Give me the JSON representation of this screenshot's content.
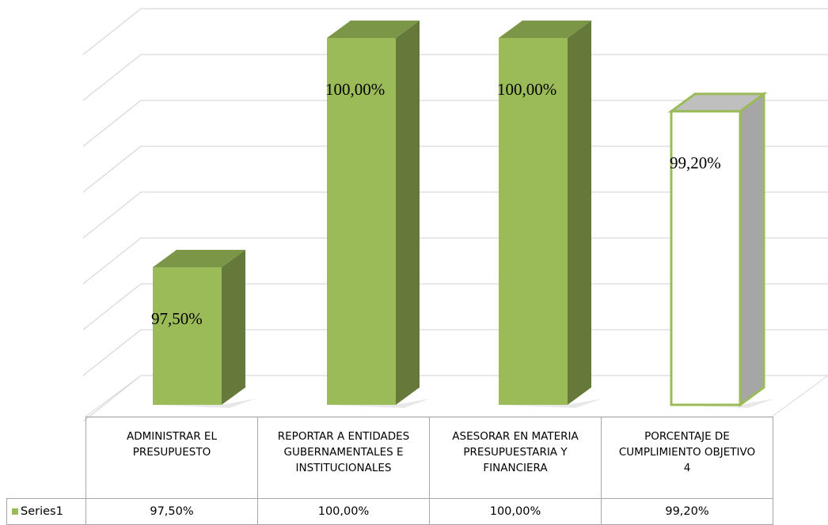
{
  "chart_data": {
    "type": "bar3d",
    "categories": [
      "ADMINISTRAR EL PRESUPUESTO",
      "REPORTAR A ENTIDADES GUBERNAMENTALES E INSTITUCIONALES",
      "ASESORAR EN MATERIA PRESUPUESTARIA Y FINANCIERA",
      "PORCENTAJE DE CUMPLIMIENTO OBJETIVO 4"
    ],
    "series": [
      {
        "name": "Series1",
        "color": "#9bbb59",
        "bar_colors": [
          "#9bbb59",
          "#9bbb59",
          "#9bbb59",
          "#ffffff"
        ],
        "values": [
          97.5,
          100,
          100,
          99.2
        ],
        "value_labels": [
          "97,50%",
          "100,00%",
          "100,00%",
          "99,20%"
        ]
      }
    ],
    "ylim": [
      96,
      100
    ],
    "yticks": [
      96,
      96.5,
      97,
      97.5,
      98,
      98.5,
      99,
      99.5,
      100
    ],
    "grid": true
  }
}
